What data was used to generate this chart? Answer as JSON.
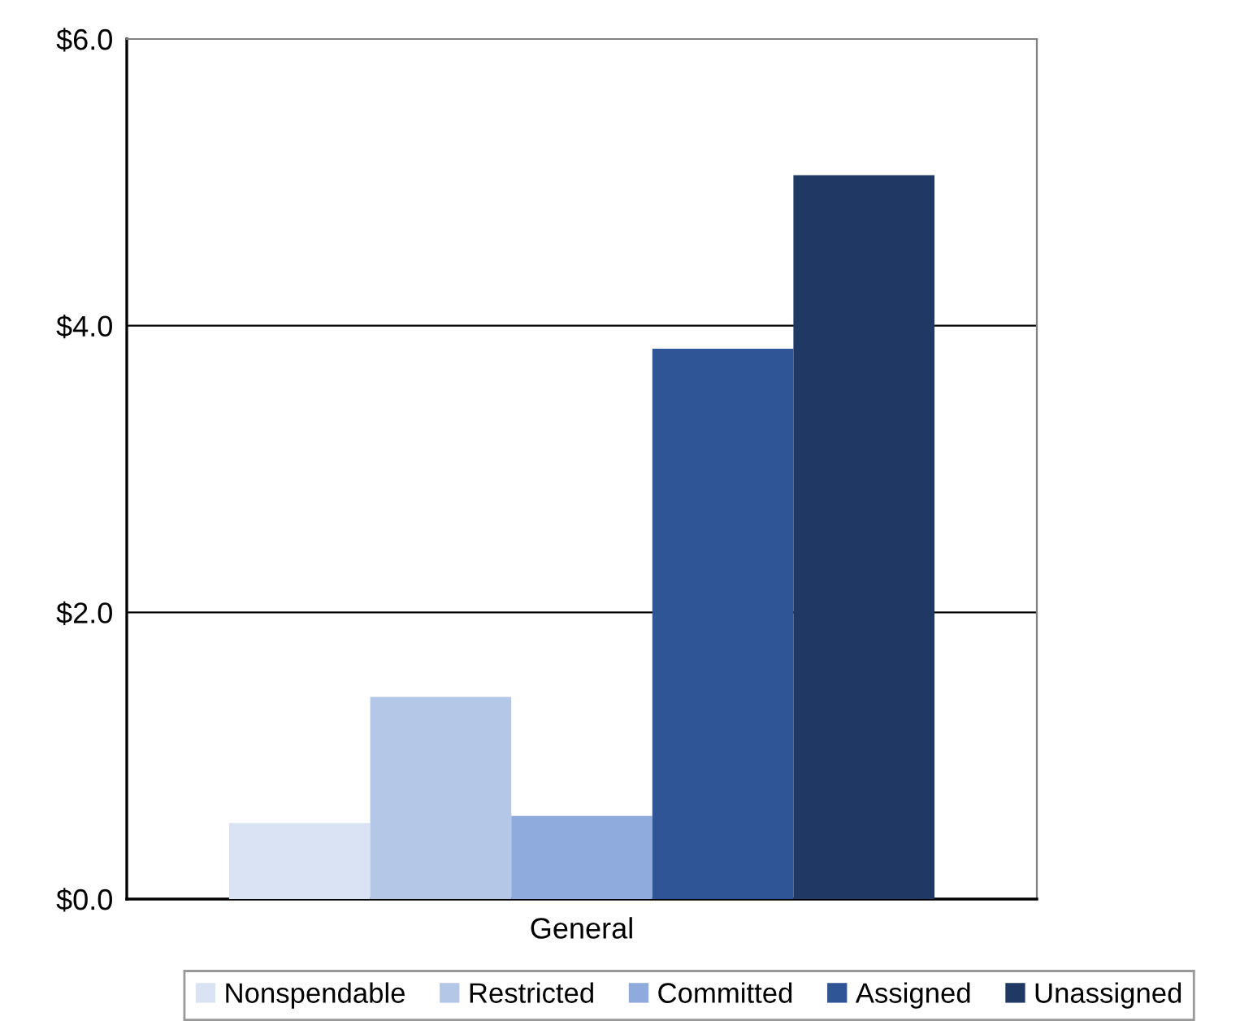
{
  "chart_data": {
    "type": "bar",
    "categories": [
      "General"
    ],
    "series": [
      {
        "name": "Nonspendable",
        "color": "#dae3f3",
        "values": [
          0.53
        ]
      },
      {
        "name": "Restricted",
        "color": "#b4c7e7",
        "values": [
          1.41
        ]
      },
      {
        "name": "Committed",
        "color": "#8faadc",
        "values": [
          0.58
        ]
      },
      {
        "name": "Assigned",
        "color": "#2f5597",
        "values": [
          3.84
        ]
      },
      {
        "name": "Unassigned",
        "color": "#203864",
        "values": [
          5.05
        ]
      }
    ],
    "ylim": [
      0,
      6
    ],
    "yticks": [
      {
        "value": 0,
        "label": "$0.0"
      },
      {
        "value": 2,
        "label": "$2.0"
      },
      {
        "value": 4,
        "label": "$4.0"
      },
      {
        "value": 6,
        "label": "$6.0"
      }
    ],
    "grid": "y",
    "legend": "bottom"
  }
}
